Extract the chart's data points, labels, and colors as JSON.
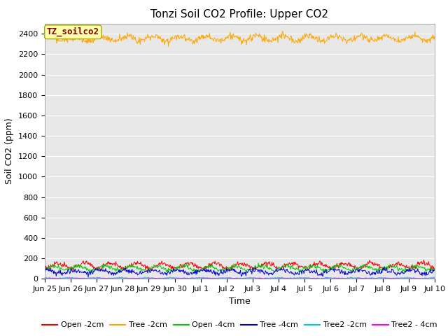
{
  "title": "Tonzi Soil CO2 Profile: Upper CO2",
  "xlabel": "Time",
  "ylabel": "Soil CO2 (ppm)",
  "ylim": [
    0,
    2500
  ],
  "yticks": [
    0,
    200,
    400,
    600,
    800,
    1000,
    1200,
    1400,
    1600,
    1800,
    2000,
    2200,
    2400
  ],
  "xtick_labels": [
    "Jun 25",
    "Jun 26",
    "Jun 27",
    "Jun 28",
    "Jun 29",
    "Jun 30",
    "Jul 1",
    "Jul 2",
    "Jul 3",
    "Jul 4",
    "Jul 5",
    "Jul 6",
    "Jul 7",
    "Jul 8",
    "Jul 9",
    "Jul 10"
  ],
  "annotation_text": "TZ_soilco2",
  "annotation_box_facecolor": "#FFFFAA",
  "annotation_box_edgecolor": "#AAAA00",
  "annotation_text_color": "#880000",
  "series": [
    {
      "key": "open_2cm",
      "label": "Open -2cm",
      "color": "#EE0000",
      "mean": 130,
      "amplitude": 25,
      "noise": 12,
      "period": 1.0
    },
    {
      "key": "tree_2cm",
      "label": "Tree -2cm",
      "color": "#FFA500",
      "mean": 2355,
      "amplitude": 25,
      "noise": 18,
      "period": 1.0
    },
    {
      "key": "open_4cm",
      "label": "Open -4cm",
      "color": "#00CC00",
      "mean": 105,
      "amplitude": 20,
      "noise": 10,
      "period": 1.0
    },
    {
      "key": "tree_4cm",
      "label": "Tree -4cm",
      "color": "#0000CC",
      "mean": 70,
      "amplitude": 18,
      "noise": 12,
      "period": 1.0
    },
    {
      "key": "tree2_2cm",
      "label": "Tree2 -2cm",
      "color": "#00CCCC",
      "mean": 8,
      "amplitude": 3,
      "noise": 3,
      "period": 1.0
    },
    {
      "key": "tree2_4cm",
      "label": "Tree2 - 4cm",
      "color": "#FF00FF",
      "mean": 3,
      "amplitude": 1,
      "noise": 1,
      "period": 1.0
    }
  ],
  "n_points": 720,
  "plot_bg_color": "#E8E8E8",
  "fig_bg_color": "#FFFFFF",
  "grid_color": "#FFFFFF",
  "title_fontsize": 11,
  "axis_label_fontsize": 9,
  "tick_fontsize": 8,
  "legend_fontsize": 8
}
